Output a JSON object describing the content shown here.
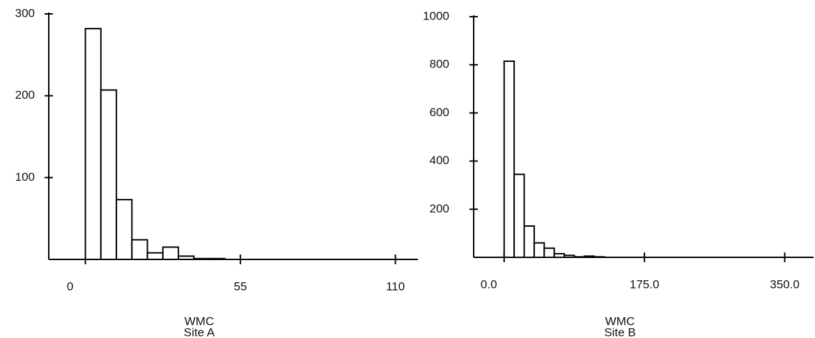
{
  "chart_data": [
    {
      "type": "histogram",
      "xlabel": "WMC",
      "caption": "Site A",
      "bins": [
        0,
        5.5,
        11,
        16.5,
        22,
        27.5,
        33,
        38.5,
        44,
        49.5
      ],
      "values": [
        282,
        207,
        73,
        24,
        8,
        15,
        4,
        1,
        1
      ],
      "color": "#ffffff",
      "xlim": [
        -13,
        118
      ],
      "xticks": [
        0,
        55,
        110
      ],
      "ylim": [
        0,
        300
      ],
      "yticks": [
        100,
        200,
        300
      ]
    },
    {
      "type": "histogram",
      "xlabel": "WMC",
      "caption": "Site B",
      "bins": [
        0,
        12.5,
        25,
        37.5,
        50,
        62.5,
        75,
        87.5,
        100,
        112.5,
        125
      ],
      "values": [
        815,
        345,
        130,
        60,
        38,
        15,
        8,
        2,
        5,
        2
      ],
      "color": "#ffffff",
      "xlim": [
        -38,
        386
      ],
      "xticks": [
        {
          "value": 0,
          "label": "0.0"
        },
        {
          "value": 175,
          "label": "175.0"
        },
        {
          "value": 350,
          "label": "350.0"
        }
      ],
      "ylim": [
        0,
        1000
      ],
      "yticks": [
        200,
        400,
        600,
        800,
        1000
      ]
    }
  ]
}
